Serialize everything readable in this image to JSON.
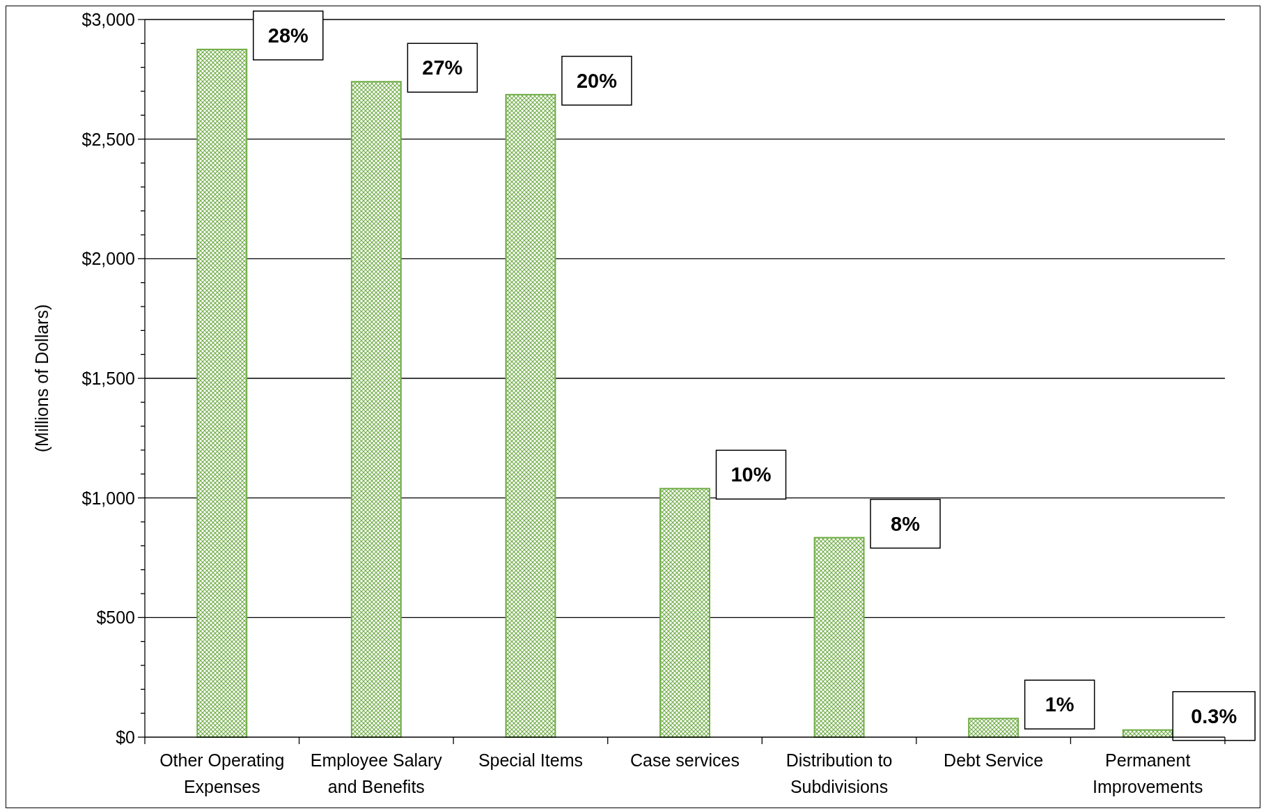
{
  "chart_data": {
    "type": "bar",
    "ylabel": "(Millions of Dollars)",
    "categories": [
      "Other Operating Expenses",
      "Employee Salary and Benefits",
      "Special Items",
      "Case services",
      "Distribution to Subdivisions",
      "Debt Service",
      "Permanent Improvements"
    ],
    "values": [
      2875,
      2740,
      2686,
      1039,
      834,
      78,
      30
    ],
    "annotations": [
      {
        "text": "28%",
        "x": "Other Operating Expenses",
        "y": 2875
      },
      {
        "text": "27%",
        "x": "Employee Salary and Benefits",
        "y": 2740
      },
      {
        "text": "20%",
        "x": "Special Items",
        "y": 2686
      },
      {
        "text": "10%",
        "x": "Case services",
        "y": 1039
      },
      {
        "text": "8%",
        "x": "Distribution to Subdivisions",
        "y": 834
      },
      {
        "text": "1%",
        "x": "Debt Service",
        "y": 78
      },
      {
        "text": "0.3%",
        "x": "Permanent Improvements",
        "y": 30
      }
    ],
    "color": "#70ad47",
    "ylim": [
      0,
      3000
    ],
    "yticks": [
      {
        "value": 0,
        "label": "$0"
      },
      {
        "value": 100,
        "label": null
      },
      {
        "value": 200,
        "label": null
      },
      {
        "value": 300,
        "label": null
      },
      {
        "value": 400,
        "label": null
      },
      {
        "value": 500,
        "label": "$500"
      },
      {
        "value": 600,
        "label": null
      },
      {
        "value": 700,
        "label": null
      },
      {
        "value": 800,
        "label": null
      },
      {
        "value": 900,
        "label": null
      },
      {
        "value": 1000,
        "label": "$1,000"
      },
      {
        "value": 1100,
        "label": null
      },
      {
        "value": 1200,
        "label": null
      },
      {
        "value": 1300,
        "label": null
      },
      {
        "value": 1400,
        "label": null
      },
      {
        "value": 1500,
        "label": "$1,500"
      },
      {
        "value": 1600,
        "label": null
      },
      {
        "value": 1700,
        "label": null
      },
      {
        "value": 1800,
        "label": null
      },
      {
        "value": 1900,
        "label": null
      },
      {
        "value": 2000,
        "label": "$2,000"
      },
      {
        "value": 2100,
        "label": null
      },
      {
        "value": 2200,
        "label": null
      },
      {
        "value": 2300,
        "label": null
      },
      {
        "value": 2400,
        "label": null
      },
      {
        "value": 2500,
        "label": "$2,500"
      },
      {
        "value": 2600,
        "label": null
      },
      {
        "value": 2700,
        "label": null
      },
      {
        "value": 2800,
        "label": null
      },
      {
        "value": 2900,
        "label": null
      },
      {
        "value": 3000,
        "label": "$3,000"
      }
    ],
    "grid": "y"
  }
}
